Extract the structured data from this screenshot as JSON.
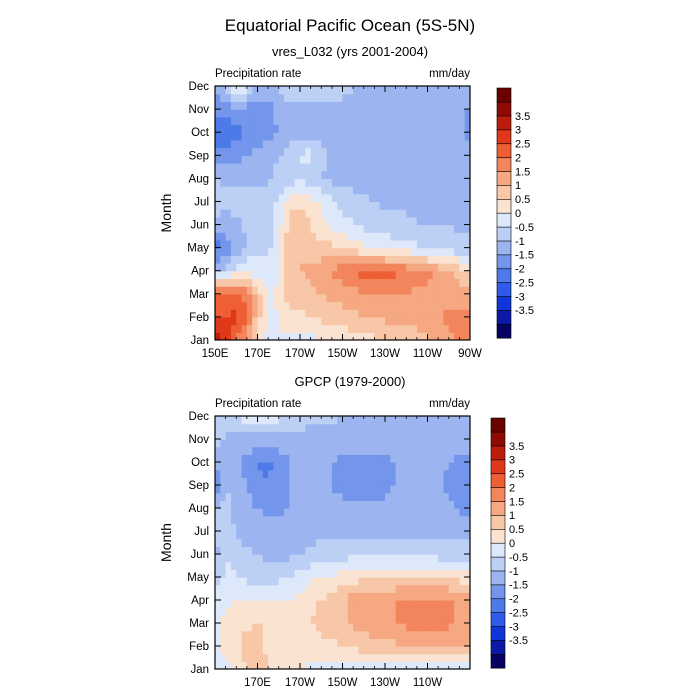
{
  "title": "Equatorial Pacific Ocean (5S-5N)",
  "colors": {
    "levels": [
      "#080262",
      "#0a1aa6",
      "#1035d8",
      "#2e5ce8",
      "#4d7ae8",
      "#7396ec",
      "#9cb5f0",
      "#bcd0f6",
      "#dde8fb",
      "#fbe3d2",
      "#f8c7a7",
      "#f5a882",
      "#f3855c",
      "#ef5f35",
      "#e0381a",
      "#bc1d0c",
      "#8f0a05",
      "#6a0300"
    ]
  },
  "chart_data": [
    {
      "type": "heatmap",
      "title": "vres_L032 (yrs 2001-2004)",
      "left_label": "Precipitation rate",
      "right_label": "mm/day",
      "ylabel": "Month",
      "xlabel": "",
      "x_tick_labels": [
        "150E",
        "170E",
        "170W",
        "150W",
        "130W",
        "110W",
        "90W"
      ],
      "x_tick_lon": [
        150,
        170,
        190,
        210,
        230,
        250,
        270
      ],
      "xlim": [
        150,
        270
      ],
      "y_tick_labels": [
        "Jan",
        "Feb",
        "Mar",
        "Apr",
        "May",
        "Jun",
        "Jul",
        "Aug",
        "Sep",
        "Oct",
        "Nov",
        "Dec"
      ],
      "ylim": [
        0,
        11
      ],
      "colorbar_labels": [
        "3.5",
        "3",
        "2.5",
        "2",
        "1.5",
        "1",
        "0.5",
        "0",
        "-0.5",
        "-1",
        "-1.5",
        "-2",
        "-2.5",
        "-3",
        "-3.5"
      ],
      "colorbar_levels": [
        -4,
        -3.5,
        -3,
        -2.5,
        -2,
        -1.5,
        -1,
        -0.5,
        0,
        0.5,
        1,
        1.5,
        2,
        2.5,
        3,
        3.5,
        4
      ],
      "grid_lon": [
        150,
        155,
        160,
        165,
        170,
        175,
        180,
        185,
        190,
        195,
        200,
        205,
        210,
        215,
        220,
        225,
        230,
        235,
        240,
        245,
        250,
        255,
        260,
        265,
        270
      ],
      "grid_month": [
        "Jan",
        "Feb",
        "Mar",
        "Apr",
        "May",
        "Jun",
        "Jul",
        "Aug",
        "Sep",
        "Oct",
        "Nov",
        "Dec"
      ],
      "values": [
        [
          3.8,
          3.5,
          2.6,
          1.6,
          0.8,
          0.3,
          0.4,
          0.4,
          0.3,
          0.3,
          0.5,
          0.6,
          0.6,
          0.7,
          0.8,
          0.9,
          0.9,
          1.0,
          1.1,
          1.2,
          1.4,
          1.6,
          1.8,
          2.2,
          2.6
        ],
        [
          3.0,
          3.0,
          3.2,
          2.6,
          1.2,
          0.4,
          0.5,
          0.9,
          0.8,
          1.0,
          1.1,
          1.2,
          1.3,
          1.4,
          1.5,
          1.6,
          1.6,
          1.7,
          1.8,
          1.8,
          1.9,
          2.0,
          2.1,
          2.3,
          2.2
        ],
        [
          2.6,
          2.6,
          2.6,
          2.4,
          1.3,
          0.4,
          0.7,
          1.2,
          1.2,
          1.4,
          1.5,
          1.6,
          1.7,
          1.8,
          1.9,
          1.9,
          2.0,
          2.0,
          2.0,
          1.9,
          1.9,
          1.8,
          1.7,
          1.7,
          1.6
        ],
        [
          -0.5,
          -0.4,
          0.4,
          0.5,
          0.2,
          0.1,
          0.4,
          1.3,
          1.5,
          1.6,
          1.8,
          2.1,
          2.4,
          2.6,
          2.7,
          2.7,
          2.6,
          2.6,
          2.4,
          2.2,
          2.1,
          1.8,
          1.6,
          1.3,
          1.1
        ],
        [
          -1.8,
          -1.4,
          -0.9,
          -0.5,
          -0.1,
          -0.1,
          0.3,
          1.3,
          1.5,
          1.3,
          1.2,
          1.1,
          0.9,
          0.8,
          0.6,
          0.5,
          0.4,
          0.3,
          0.2,
          0.1,
          -0.1,
          -0.2,
          -0.3,
          -0.3,
          -0.4
        ],
        [
          -0.6,
          -0.7,
          -0.6,
          -0.4,
          -0.2,
          -0.2,
          0.3,
          1.2,
          1.3,
          1.0,
          0.6,
          0.4,
          0.2,
          0.1,
          -0.1,
          -0.2,
          -0.3,
          -0.4,
          -0.4,
          -0.5,
          -0.5,
          -0.5,
          -0.5,
          -0.6,
          -0.6
        ],
        [
          -0.3,
          -0.4,
          -0.3,
          -0.2,
          -0.1,
          -0.2,
          0.1,
          0.8,
          0.9,
          0.7,
          0.4,
          0.1,
          -0.2,
          -0.3,
          -0.4,
          -0.5,
          -0.6,
          -0.6,
          -0.6,
          -0.6,
          -0.6,
          -0.6,
          -0.6,
          -0.6,
          -0.6
        ],
        [
          -0.5,
          -0.6,
          -0.7,
          -0.7,
          -0.7,
          -0.6,
          -0.4,
          -0.3,
          -0.1,
          -0.3,
          -0.5,
          -0.6,
          -0.7,
          -0.7,
          -0.7,
          -0.7,
          -0.7,
          -0.7,
          -0.7,
          -0.7,
          -0.7,
          -0.7,
          -0.7,
          -0.7,
          -0.7
        ],
        [
          -1.2,
          -1.2,
          -1.1,
          -1.0,
          -0.9,
          -0.7,
          -0.5,
          -0.2,
          0.1,
          0.2,
          -0.4,
          -0.6,
          -0.7,
          -0.7,
          -0.7,
          -0.7,
          -0.7,
          -0.7,
          -0.7,
          -0.7,
          -0.7,
          -0.7,
          -0.7,
          -0.7,
          -0.7
        ],
        [
          -2.1,
          -1.9,
          -1.7,
          -1.4,
          -1.2,
          -1.1,
          -1.0,
          -0.9,
          -0.7,
          -0.7,
          -0.7,
          -0.7,
          -0.7,
          -0.7,
          -0.7,
          -0.7,
          -0.7,
          -0.7,
          -0.7,
          -0.7,
          -0.7,
          -0.7,
          -0.8,
          -1.0,
          -1.1
        ],
        [
          -1.3,
          -1.3,
          -1.1,
          -1.2,
          -1.4,
          -1.2,
          -0.9,
          -0.7,
          -0.6,
          -0.6,
          -0.6,
          -0.6,
          -0.6,
          -0.6,
          -0.6,
          -0.6,
          -0.6,
          -0.6,
          -0.6,
          -0.6,
          -0.6,
          -0.7,
          -0.7,
          -0.8,
          -1.1
        ],
        [
          -1.0,
          -0.2,
          0.7,
          0.3,
          -0.6,
          -0.6,
          -0.4,
          -0.2,
          -0.2,
          -0.3,
          -0.3,
          -0.3,
          -0.4,
          -0.5,
          -0.5,
          -0.5,
          -0.5,
          -0.5,
          -0.5,
          -0.5,
          -0.5,
          -0.5,
          -0.6,
          -0.6,
          -0.7
        ]
      ]
    },
    {
      "type": "heatmap",
      "title": "GPCP (1979-2000)",
      "left_label": "Precipitation rate",
      "right_label": "mm/day",
      "ylabel": "Month",
      "xlabel": "",
      "x_tick_labels": [
        "170E",
        "170W",
        "150W",
        "130W",
        "110W"
      ],
      "x_tick_lon": [
        170,
        190,
        210,
        230,
        250
      ],
      "xlim": [
        150,
        270
      ],
      "y_tick_labels": [
        "Jan",
        "Feb",
        "Mar",
        "Apr",
        "May",
        "Jun",
        "Jul",
        "Aug",
        "Sep",
        "Oct",
        "Nov",
        "Dec"
      ],
      "ylim": [
        0,
        11
      ],
      "colorbar_labels": [
        "3.5",
        "3",
        "2.5",
        "2",
        "1.5",
        "1",
        "0.5",
        "0",
        "-0.5",
        "-1",
        "-1.5",
        "-2",
        "-2.5",
        "-3",
        "-3.5"
      ],
      "colorbar_levels": [
        -4,
        -3.5,
        -3,
        -2.5,
        -2,
        -1.5,
        -1,
        -0.5,
        0,
        0.5,
        1,
        1.5,
        2,
        2.5,
        3,
        3.5,
        4
      ],
      "grid_lon": [
        150,
        155,
        160,
        165,
        170,
        175,
        180,
        185,
        190,
        195,
        200,
        205,
        210,
        215,
        220,
        225,
        230,
        235,
        240,
        245,
        250,
        255,
        260,
        265,
        270
      ],
      "grid_month": [
        "Jan",
        "Feb",
        "Mar",
        "Apr",
        "May",
        "Jun",
        "Jul",
        "Aug",
        "Sep",
        "Oct",
        "Nov",
        "Dec"
      ],
      "values": [
        [
          0.3,
          0.4,
          0.6,
          0.9,
          1.1,
          1.0,
          0.8,
          0.6,
          0.5,
          0.4,
          0.3,
          0.3,
          0.3,
          0.3,
          0.3,
          0.3,
          0.2,
          0.2,
          0.2,
          0.1,
          0.1,
          0.1,
          0.1,
          0.1,
          0.1
        ],
        [
          0.4,
          0.6,
          0.9,
          1.3,
          1.2,
          0.9,
          0.7,
          0.5,
          0.6,
          0.7,
          0.8,
          0.9,
          1.0,
          1.1,
          1.2,
          1.3,
          1.4,
          1.4,
          1.5,
          1.5,
          1.5,
          1.5,
          1.6,
          1.6,
          1.6
        ],
        [
          0.4,
          0.6,
          0.8,
          0.9,
          1.0,
          0.9,
          0.8,
          0.7,
          0.9,
          1.0,
          1.2,
          1.3,
          1.4,
          1.6,
          1.7,
          1.8,
          1.9,
          2.0,
          2.1,
          2.2,
          2.1,
          2.2,
          2.1,
          1.9,
          1.6
        ],
        [
          0.3,
          0.4,
          0.5,
          0.5,
          0.6,
          0.6,
          0.6,
          0.5,
          0.7,
          0.9,
          1.0,
          1.2,
          1.4,
          1.8,
          1.9,
          2.0,
          2.0,
          2.0,
          2.1,
          2.2,
          2.1,
          2.2,
          2.1,
          1.9,
          1.6
        ],
        [
          -0.3,
          0.1,
          0.1,
          -0.1,
          -0.2,
          -0.2,
          -0.1,
          0.0,
          0.2,
          0.4,
          0.5,
          0.6,
          0.7,
          0.8,
          0.9,
          0.9,
          0.9,
          1.0,
          1.0,
          1.0,
          1.0,
          1.0,
          0.9,
          0.8,
          0.7
        ],
        [
          -0.7,
          0.0,
          -0.3,
          -0.4,
          -0.5,
          -0.6,
          -0.6,
          -0.6,
          -0.5,
          -0.4,
          -0.3,
          -0.2,
          -0.2,
          -0.1,
          -0.1,
          -0.1,
          -0.1,
          -0.1,
          -0.1,
          -0.2,
          -0.2,
          -0.2,
          -0.3,
          -0.3,
          -0.4
        ],
        [
          -0.6,
          0.0,
          -0.6,
          -0.7,
          -0.7,
          -0.8,
          -0.8,
          -0.8,
          -0.8,
          -0.7,
          -0.6,
          -0.6,
          -0.6,
          -0.6,
          -0.6,
          -0.6,
          -0.6,
          -0.6,
          -0.6,
          -0.6,
          -0.6,
          -0.6,
          -0.6,
          -0.6,
          -0.6
        ],
        [
          -0.6,
          -0.2,
          -0.7,
          -0.8,
          -1.0,
          -1.1,
          -1.1,
          -1.0,
          -0.9,
          -0.8,
          -0.8,
          -0.8,
          -0.8,
          -0.9,
          -0.9,
          -0.9,
          -0.9,
          -0.8,
          -0.8,
          -0.7,
          -0.7,
          -0.8,
          -0.9,
          -1.1,
          -1.1
        ],
        [
          -1.4,
          -0.6,
          -0.8,
          -1.0,
          -1.4,
          -1.5,
          -1.2,
          -1.0,
          -0.9,
          -0.8,
          -0.8,
          -1.0,
          -1.2,
          -1.3,
          -1.3,
          -1.2,
          -1.1,
          -1.0,
          -0.9,
          -0.8,
          -0.8,
          -0.9,
          -1.1,
          -1.2,
          -1.1
        ],
        [
          -0.9,
          -0.8,
          -0.9,
          -1.2,
          -1.5,
          -1.6,
          -1.3,
          -1.0,
          -0.8,
          -0.8,
          -0.9,
          -1.0,
          -1.2,
          -1.3,
          -1.3,
          -1.2,
          -1.1,
          -1.0,
          -0.9,
          -0.8,
          -0.8,
          -0.9,
          -1.0,
          -1.1,
          -1.0
        ],
        [
          -0.3,
          -0.5,
          -0.6,
          -0.7,
          -0.8,
          -0.8,
          -0.7,
          -0.6,
          -0.6,
          -0.7,
          -0.7,
          -0.7,
          -0.7,
          -0.7,
          -0.7,
          -0.7,
          -0.7,
          -0.7,
          -0.7,
          -0.7,
          -0.7,
          -0.7,
          -0.8,
          -0.9,
          -0.9
        ],
        [
          -0.5,
          -0.5,
          -0.1,
          0.3,
          0.7,
          0.5,
          0.2,
          -0.1,
          -0.3,
          -0.4,
          -0.4,
          -0.4,
          -0.5,
          -0.5,
          -0.5,
          -0.5,
          -0.5,
          -0.5,
          -0.5,
          -0.5,
          -0.5,
          -0.5,
          -0.6,
          -0.6,
          -0.7
        ]
      ]
    }
  ]
}
